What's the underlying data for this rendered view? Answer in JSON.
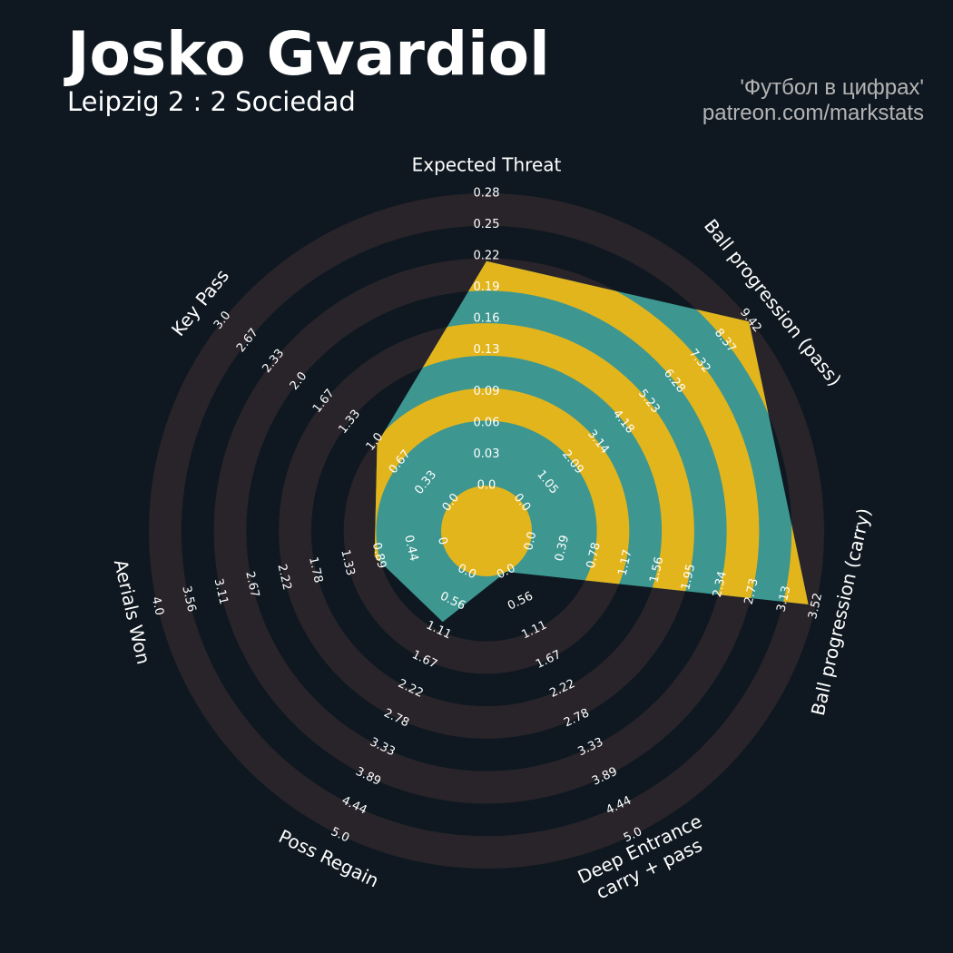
{
  "chart_data": {
    "type": "radar",
    "title": "Josko Gvardiol",
    "subtitle": "Leipzig 2 : 2 Sociedad",
    "credits": [
      "'Футбол в цифрах'",
      "patreon.com/markstats"
    ],
    "categories": [
      "Expected Threat",
      "Ball progression (pass)",
      "Ball progression (carry)",
      "Deep Entrance\ncarry + pass",
      "Poss Regain",
      "Aerials Won",
      "Key Pass"
    ],
    "values": [
      0.215,
      9.36,
      3.43,
      0,
      0.95,
      0.95,
      0.97
    ],
    "ranges": [
      [
        0,
        0.28
      ],
      [
        0,
        9.42
      ],
      [
        0,
        3.52
      ],
      [
        0,
        5
      ],
      [
        0,
        5
      ],
      [
        0,
        4
      ],
      [
        0,
        3
      ]
    ],
    "ticks": [
      [
        {
          "value": 0,
          "label": "0.0"
        },
        0.03,
        0.06,
        0.09,
        0.13,
        0.16,
        0.19,
        0.22,
        0.25,
        0.28
      ],
      [
        {
          "value": 0,
          "label": "0.0"
        },
        1.05,
        2.09,
        3.14,
        4.18,
        5.23,
        6.28,
        7.32,
        8.37,
        9.42
      ],
      [
        {
          "value": 0,
          "label": "0.0"
        },
        0.39,
        0.78,
        1.17,
        1.56,
        1.95,
        2.34,
        2.73,
        3.13,
        3.52
      ],
      [
        {
          "value": 0,
          "label": "0.0"
        },
        0.56,
        1.11,
        1.67,
        2.22,
        2.78,
        3.33,
        3.89,
        4.44,
        {
          "value": 5,
          "label": "5.0"
        }
      ],
      [
        {
          "value": 0,
          "label": "0.0"
        },
        0.56,
        1.11,
        1.67,
        2.22,
        2.78,
        3.33,
        3.89,
        4.44,
        {
          "value": 5,
          "label": "5.0"
        }
      ],
      [
        {
          "value": 0,
          "label": "0"
        },
        0.44,
        0.89,
        1.33,
        1.78,
        2.22,
        2.67,
        3.11,
        3.56,
        {
          "value": 4,
          "label": "4.0"
        }
      ],
      [
        {
          "value": 0,
          "label": "0.0"
        },
        0.33,
        0.67,
        {
          "value": 1,
          "label": "1.0"
        },
        1.33,
        1.67,
        {
          "value": 2,
          "label": "2.0"
        },
        2.33,
        2.67,
        {
          "value": 3,
          "label": "3.0"
        }
      ]
    ],
    "colors": {
      "background": "#0f1820",
      "ring": "#28242a",
      "polygon": "#3d9690",
      "polygon_ring": "#e2b51d"
    }
  }
}
